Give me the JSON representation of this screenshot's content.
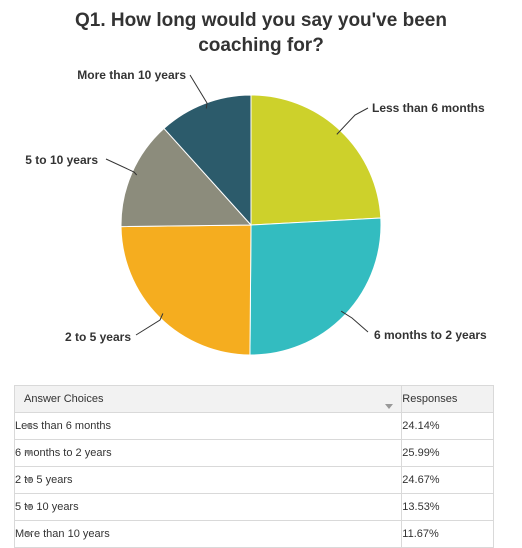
{
  "title_lines": [
    "Q1. How long would you say you've been",
    "coaching for?"
  ],
  "chart_data": {
    "type": "pie",
    "title": "Q1. How long would you say you've been coaching for?",
    "slices": [
      {
        "label": "Less than 6 months",
        "value": 24.14,
        "color": "#cdd12b"
      },
      {
        "label": "6 months to 2 years",
        "value": 25.99,
        "color": "#33bcc0"
      },
      {
        "label": "2 to 5 years",
        "value": 24.67,
        "color": "#f5ad1f"
      },
      {
        "label": "5 to 10 years",
        "value": 13.53,
        "color": "#8c8c7c"
      },
      {
        "label": "More than 10 years",
        "value": 11.67,
        "color": "#2c5b6b"
      }
    ]
  },
  "table": {
    "header_answer": "Answer Choices",
    "header_responses": "Responses",
    "rows": [
      {
        "answer": "Less than 6 months",
        "response": "24.14%"
      },
      {
        "answer": "6 months to 2 years",
        "response": "25.99%"
      },
      {
        "answer": "2 to 5 years",
        "response": "24.67%"
      },
      {
        "answer": "5 to 10 years",
        "response": "13.53%"
      },
      {
        "answer": "More than 10 years",
        "response": "11.67%"
      }
    ]
  }
}
